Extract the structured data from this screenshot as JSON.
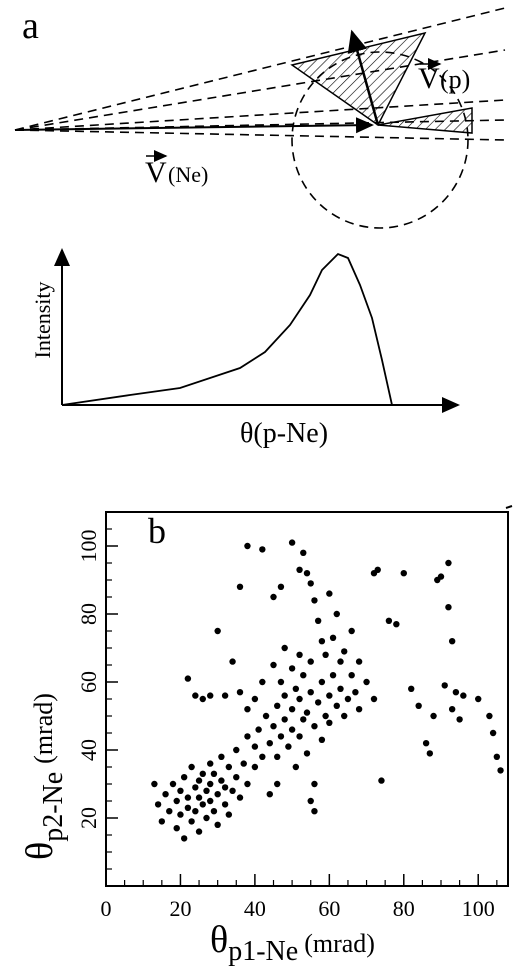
{
  "panel_a": {
    "label": "a",
    "v_p_symbol": "V",
    "v_p_text": "(p)",
    "v_ne_symbol": "V",
    "v_ne_text": "(Ne)",
    "intensity": "Intensity",
    "theta_label": "θ(p-Ne)"
  },
  "chart_data": {
    "type": "scatter",
    "panel_label": "b",
    "y_label": {
      "symbol": "θ",
      "subscript": "p2-Ne",
      "unit": "(mrad)"
    },
    "x_label": {
      "symbol": "θ",
      "subscript": "p1-Ne",
      "unit": "(mrad)"
    },
    "color": "#000000",
    "xlim": [
      0,
      108
    ],
    "ylim": [
      0,
      110
    ],
    "xticks": [
      0,
      20,
      40,
      60,
      80,
      100
    ],
    "yticks": [
      20,
      40,
      60,
      80,
      100
    ],
    "xminorticks": [
      5,
      10,
      15,
      25,
      30,
      35,
      45,
      50,
      55,
      65,
      70,
      75,
      85,
      90,
      95,
      105
    ],
    "yminorticks": [
      5,
      10,
      15,
      25,
      30,
      35,
      45,
      50,
      55,
      65,
      70,
      75,
      85,
      90,
      95,
      105
    ],
    "x": [
      13,
      14,
      15,
      16,
      17,
      18,
      19,
      19,
      20,
      20,
      21,
      21,
      22,
      22,
      23,
      23,
      24,
      24,
      25,
      25,
      25,
      26,
      26,
      27,
      27,
      28,
      28,
      28,
      29,
      29,
      30,
      30,
      31,
      31,
      32,
      32,
      33,
      33,
      34,
      35,
      35,
      36,
      37,
      38,
      38,
      40,
      40,
      41,
      42,
      43,
      44,
      45,
      46,
      46,
      47,
      48,
      48,
      49,
      50,
      50,
      51,
      51,
      52,
      52,
      53,
      53,
      54,
      54,
      55,
      55,
      56,
      56,
      57,
      58,
      58,
      59,
      60,
      60,
      61,
      62,
      63,
      64,
      65,
      66,
      67,
      68,
      70,
      72,
      74,
      22,
      24,
      26,
      28,
      30,
      32,
      34,
      36,
      38,
      42,
      45,
      47,
      50,
      52,
      53,
      54,
      55,
      56,
      57,
      58,
      60,
      62,
      64,
      66,
      68,
      72,
      73,
      76,
      78,
      80,
      82,
      84,
      86,
      87,
      88,
      89,
      90,
      91,
      92,
      92,
      93,
      93,
      94,
      95,
      96,
      100,
      103,
      104,
      105,
      106,
      45,
      48,
      42,
      40,
      38,
      36,
      55,
      56,
      44,
      46,
      52,
      59,
      61,
      63,
      50,
      47
    ],
    "y": [
      30,
      24,
      19,
      27,
      22,
      30,
      25,
      17,
      28,
      21,
      32,
      14,
      26,
      23,
      35,
      19,
      29,
      22,
      31,
      26,
      16,
      33,
      24,
      28,
      20,
      36,
      30,
      25,
      22,
      33,
      27,
      18,
      38,
      31,
      24,
      29,
      35,
      21,
      28,
      32,
      40,
      26,
      36,
      30,
      44,
      35,
      41,
      46,
      38,
      50,
      42,
      47,
      53,
      38,
      44,
      56,
      49,
      41,
      52,
      46,
      58,
      35,
      55,
      44,
      62,
      49,
      51,
      39,
      57,
      66,
      47,
      30,
      54,
      60,
      43,
      50,
      56,
      48,
      62,
      53,
      58,
      50,
      55,
      62,
      57,
      52,
      60,
      55,
      31,
      61,
      56,
      55,
      56,
      75,
      56,
      66,
      88,
      100,
      99,
      85,
      88,
      101,
      93,
      98,
      92,
      89,
      84,
      78,
      72,
      86,
      80,
      69,
      75,
      66,
      92,
      93,
      78,
      77,
      92,
      58,
      53,
      42,
      39,
      50,
      90,
      91,
      59,
      95,
      82,
      72,
      52,
      57,
      49,
      56,
      55,
      50,
      45,
      38,
      34,
      65,
      70,
      60,
      55,
      52,
      57,
      25,
      22,
      27,
      30,
      68,
      68,
      73,
      66,
      64,
      60
    ]
  }
}
